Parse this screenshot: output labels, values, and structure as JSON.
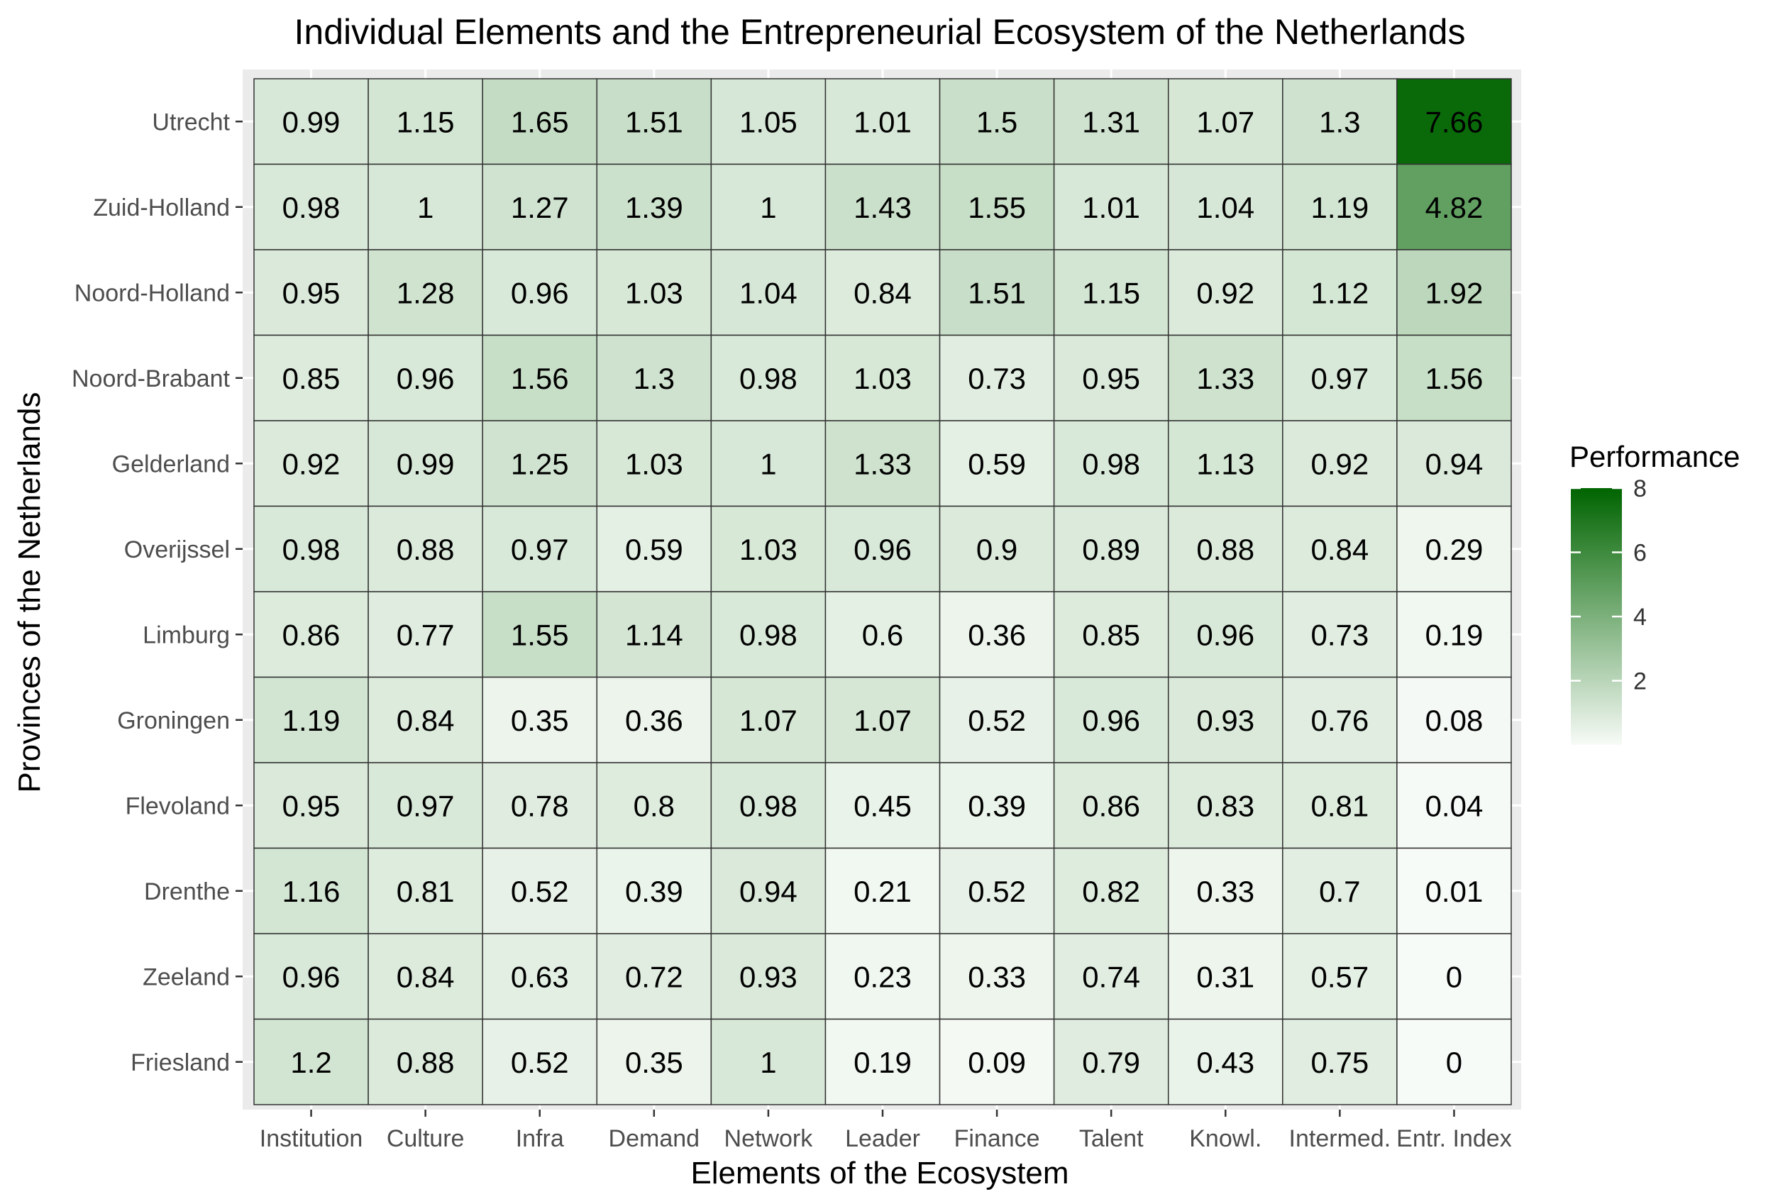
{
  "chart_data": {
    "type": "heatmap",
    "title": "Individual Elements and the Entrepreneurial Ecosystem of the Netherlands",
    "xlabel": "Elements of the Ecosystem",
    "ylabel": "Provinces of the Netherlands",
    "x_categories": [
      "Institution",
      "Culture",
      "Infra",
      "Demand",
      "Network",
      "Leader",
      "Finance",
      "Talent",
      "Knowl.",
      "Intermed.",
      "Entr. Index"
    ],
    "y_categories": [
      "Utrecht",
      "Zuid-Holland",
      "Noord-Holland",
      "Noord-Brabant",
      "Gelderland",
      "Overijssel",
      "Limburg",
      "Groningen",
      "Flevoland",
      "Drenthe",
      "Zeeland",
      "Friesland"
    ],
    "values": [
      [
        0.99,
        1.15,
        1.65,
        1.51,
        1.05,
        1.01,
        1.5,
        1.31,
        1.07,
        1.3,
        7.66
      ],
      [
        0.98,
        1,
        1.27,
        1.39,
        1,
        1.43,
        1.55,
        1.01,
        1.04,
        1.19,
        4.82
      ],
      [
        0.95,
        1.28,
        0.96,
        1.03,
        1.04,
        0.84,
        1.51,
        1.15,
        0.92,
        1.12,
        1.92
      ],
      [
        0.85,
        0.96,
        1.56,
        1.3,
        0.98,
        1.03,
        0.73,
        0.95,
        1.33,
        0.97,
        1.56
      ],
      [
        0.92,
        0.99,
        1.25,
        1.03,
        1,
        1.33,
        0.59,
        0.98,
        1.13,
        0.92,
        0.94
      ],
      [
        0.98,
        0.88,
        0.97,
        0.59,
        1.03,
        0.96,
        0.9,
        0.89,
        0.88,
        0.84,
        0.29
      ],
      [
        0.86,
        0.77,
        1.55,
        1.14,
        0.98,
        0.6,
        0.36,
        0.85,
        0.96,
        0.73,
        0.19
      ],
      [
        1.19,
        0.84,
        0.35,
        0.36,
        1.07,
        1.07,
        0.52,
        0.96,
        0.93,
        0.76,
        0.08
      ],
      [
        0.95,
        0.97,
        0.78,
        0.8,
        0.98,
        0.45,
        0.39,
        0.86,
        0.83,
        0.81,
        0.04
      ],
      [
        1.16,
        0.81,
        0.52,
        0.39,
        0.94,
        0.21,
        0.52,
        0.82,
        0.33,
        0.7,
        0.01
      ],
      [
        0.96,
        0.84,
        0.63,
        0.72,
        0.93,
        0.23,
        0.33,
        0.74,
        0.31,
        0.57,
        0
      ],
      [
        1.2,
        0.88,
        0.52,
        0.35,
        1,
        0.19,
        0.09,
        0.79,
        0.43,
        0.75,
        0
      ]
    ],
    "legend": {
      "title": "Performance",
      "ticks": [
        2,
        4,
        6,
        8
      ],
      "position": "right"
    },
    "colors": {
      "low": "#f7fbf7",
      "high": "#006400",
      "panel_background": "#ebebeb",
      "grid": "#ffffff",
      "tile_border": "#333333"
    }
  }
}
